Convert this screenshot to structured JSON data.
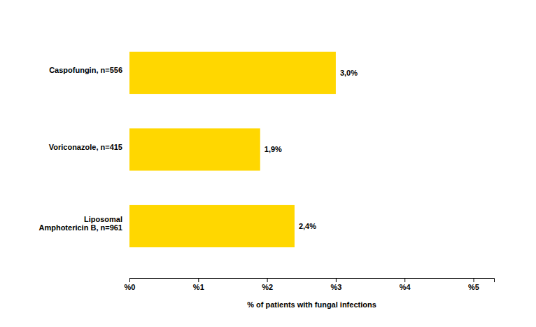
{
  "chart_data": {
    "type": "bar",
    "orientation": "horizontal",
    "categories": [
      "Liposomal\nAmphotericin B, n=961",
      "Voriconazole, n=415",
      "Caspofungin, n=556"
    ],
    "values": [
      2.4,
      1.9,
      3.0
    ],
    "value_labels": [
      "2,4%",
      "1,9%",
      "3,0%"
    ],
    "data_labels": true,
    "color": "#FFD700",
    "xlabel": "% of patients with fungal infections",
    "xlim": [
      0,
      5.3
    ],
    "xticks": [
      {
        "value": 0,
        "label": "%0"
      },
      {
        "value": 1,
        "label": "%1"
      },
      {
        "value": 2,
        "label": "%2"
      },
      {
        "value": 3,
        "label": "%3"
      },
      {
        "value": 4,
        "label": "%4"
      },
      {
        "value": 5,
        "label": "%5"
      }
    ],
    "grid": false
  }
}
